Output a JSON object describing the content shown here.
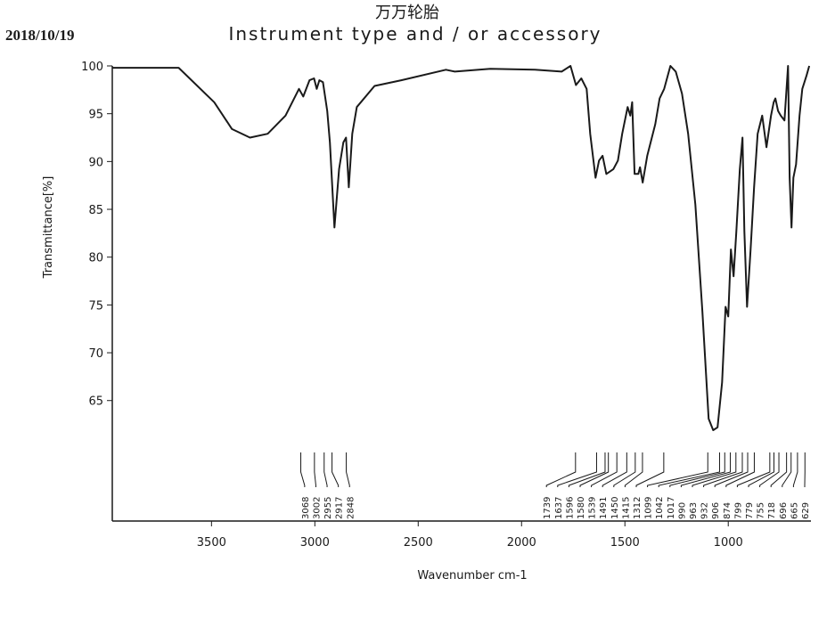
{
  "chart_data": {
    "type": "line",
    "title": "万万轮胎",
    "subtitle": "Instrument type and / or accessory",
    "date": "2018/10/19",
    "x_label": "Wavenumber cm-1",
    "y_label": "Transmittance[%]",
    "xlim": [
      3980,
      600
    ],
    "ylim": [
      52.4,
      100
    ],
    "xticks": [
      3500,
      3000,
      2500,
      2000,
      1500,
      1000
    ],
    "yticks": [
      65,
      70,
      75,
      80,
      85,
      90,
      95,
      100
    ],
    "grid": false,
    "x": [
      3978,
      3659,
      3487,
      3401,
      3314,
      3228,
      3142,
      3077,
      3056,
      3026,
      3004,
      2991,
      2978,
      2961,
      2940,
      2927,
      2905,
      2883,
      2862,
      2849,
      2836,
      2819,
      2797,
      2711,
      2582,
      2366,
      2323,
      2151,
      1935,
      1806,
      1763,
      1737,
      1711,
      1685,
      1668,
      1642,
      1625,
      1608,
      1590,
      1556,
      1534,
      1513,
      1487,
      1474,
      1465,
      1453,
      1435,
      1427,
      1414,
      1392,
      1353,
      1332,
      1310,
      1280,
      1254,
      1224,
      1194,
      1159,
      1125,
      1095,
      1073,
      1052,
      1030,
      1013,
      1000,
      987,
      974,
      961,
      944,
      931,
      922,
      909,
      892,
      875,
      858,
      836,
      815,
      793,
      780,
      772,
      759,
      746,
      728,
      711,
      703,
      694,
      685,
      672,
      655,
      642,
      621,
      608
    ],
    "series": [
      {
        "name": "spectrum",
        "color": "#1a1a1a",
        "values": [
          99.8,
          99.8,
          96.2,
          93.4,
          92.5,
          92.9,
          94.8,
          97.6,
          96.8,
          98.5,
          98.7,
          97.6,
          98.5,
          98.3,
          95.3,
          92.0,
          83.1,
          89.2,
          92.0,
          92.5,
          87.3,
          92.9,
          95.7,
          97.9,
          98.5,
          99.6,
          99.4,
          99.7,
          99.6,
          99.4,
          100,
          98.0,
          98.7,
          97.6,
          92.9,
          88.3,
          90.1,
          90.6,
          88.7,
          89.2,
          90.1,
          92.9,
          95.7,
          94.8,
          96.2,
          88.7,
          88.7,
          89.4,
          87.8,
          90.6,
          93.9,
          96.6,
          97.6,
          100,
          99.4,
          97.1,
          92.9,
          85.5,
          74.3,
          63.1,
          61.9,
          62.2,
          66.9,
          74.8,
          73.8,
          80.8,
          78.0,
          82.7,
          89.2,
          92.5,
          82.7,
          74.8,
          80.8,
          87.3,
          92.9,
          94.8,
          91.5,
          94.8,
          96.2,
          96.6,
          95.3,
          94.8,
          94.3,
          100,
          88.3,
          83.1,
          88.3,
          89.7,
          94.8,
          97.6,
          99.0,
          100
        ]
      }
    ],
    "peaks": [
      3068,
      3002,
      2955,
      2917,
      2848,
      1739,
      1637,
      1596,
      1580,
      1539,
      1491,
      1450,
      1415,
      1312,
      1099,
      1042,
      1017,
      990,
      963,
      932,
      906,
      874,
      799,
      779,
      755,
      718,
      696,
      665,
      629
    ]
  }
}
